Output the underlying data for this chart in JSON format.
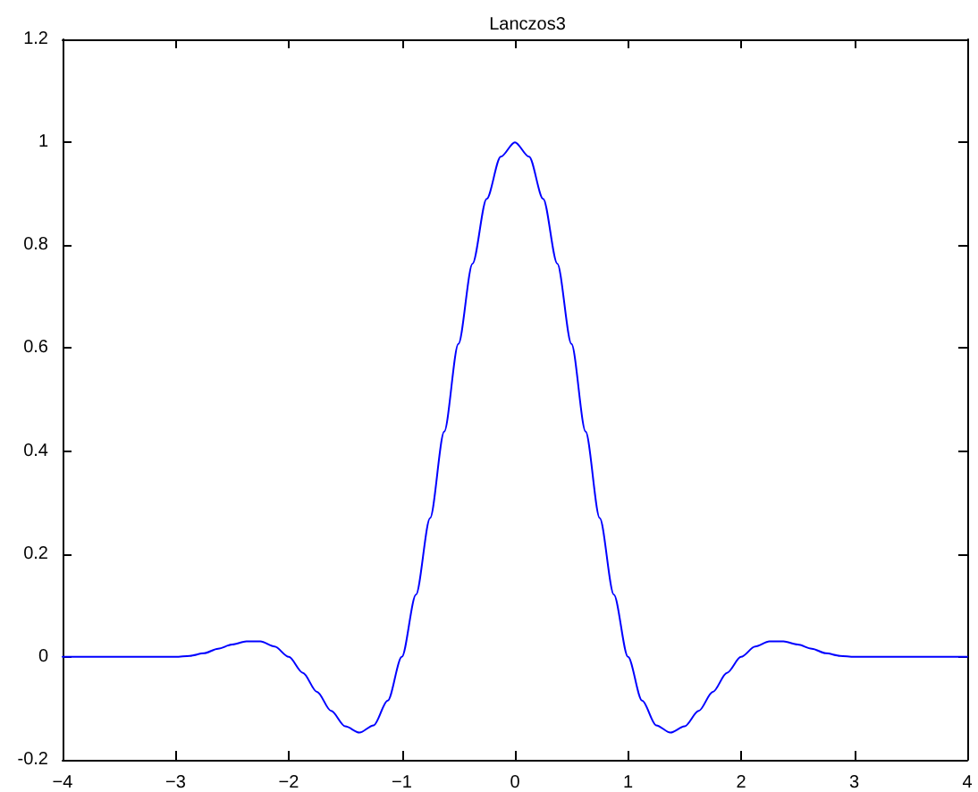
{
  "chart_data": {
    "type": "line",
    "title": "Lanczos3",
    "x": [
      -4,
      -3.5,
      -3,
      -2.875,
      -2.75,
      -2.625,
      -2.5,
      -2.375,
      -2.25,
      -2.125,
      -2,
      -1.875,
      -1.75,
      -1.625,
      -1.5,
      -1.375,
      -1.25,
      -1.125,
      -1,
      -0.875,
      -0.75,
      -0.625,
      -0.5,
      -0.375,
      -0.25,
      -0.125,
      0,
      0.125,
      0.25,
      0.375,
      0.5,
      0.625,
      0.75,
      0.875,
      1,
      1.125,
      1.25,
      1.375,
      1.5,
      1.625,
      1.75,
      1.875,
      2,
      2.125,
      2.25,
      2.375,
      2.5,
      2.625,
      2.75,
      2.875,
      3,
      3.5,
      4
    ],
    "series": [
      {
        "color": "#0000ff",
        "values": [
          0,
          0,
          0,
          0.002,
          0.007,
          0.016,
          0.024,
          0.03,
          0.03,
          0.02,
          0,
          -0.031,
          -0.068,
          -0.105,
          -0.135,
          -0.147,
          -0.133,
          -0.085,
          0,
          0.121,
          0.27,
          0.438,
          0.608,
          0.764,
          0.89,
          0.972,
          1,
          0.972,
          0.89,
          0.764,
          0.608,
          0.438,
          0.27,
          0.121,
          0,
          -0.085,
          -0.133,
          -0.147,
          -0.135,
          -0.105,
          -0.068,
          -0.031,
          0,
          0.02,
          0.03,
          0.03,
          0.024,
          0.016,
          0.007,
          0.002,
          0,
          0,
          0
        ]
      }
    ],
    "xlim": [
      -4,
      4
    ],
    "xticks": [
      -4,
      -3,
      -2,
      -1,
      0,
      1,
      2,
      3,
      4
    ],
    "ylim": [
      -0.2,
      1.2
    ],
    "yticks": [
      -0.2,
      0,
      0.2,
      0.4,
      0.6,
      0.8,
      1,
      1.2
    ],
    "grid": false,
    "marker": "none",
    "line_style": "solid"
  }
}
